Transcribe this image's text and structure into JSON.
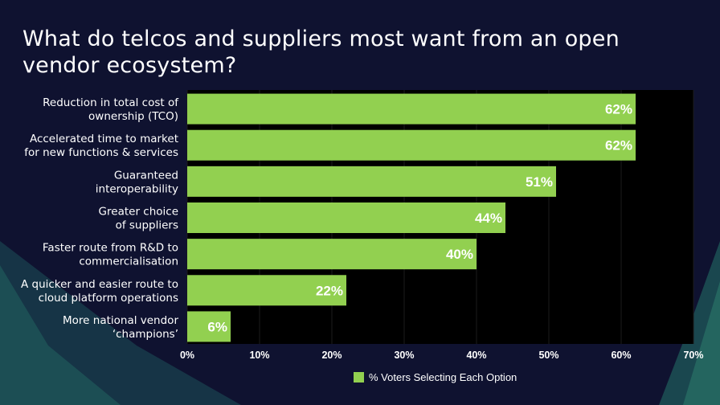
{
  "title": "What do telcos and suppliers most want from an open vendor ecosystem?",
  "colors": {
    "bar": "#92d050",
    "plot_bg": "#000000",
    "page_bg": "#0f1230",
    "text": "#ffffff"
  },
  "chart_data": {
    "type": "bar",
    "orientation": "horizontal",
    "title": "What do telcos and suppliers most want from an open vendor ecosystem?",
    "categories": [
      [
        "Reduction in total cost of",
        "ownership (TCO)"
      ],
      [
        "Accelerated time to market",
        "for new functions & services"
      ],
      [
        "Guaranteed",
        "interoperability"
      ],
      [
        "Greater choice",
        "of suppliers"
      ],
      [
        "Faster route from R&D to",
        "commercialisation"
      ],
      [
        "A quicker and easier route to",
        "cloud platform operations"
      ],
      [
        "More national vendor",
        "‘champions’"
      ]
    ],
    "series": [
      {
        "name": "% Voters Selecting Each Option",
        "values": [
          62,
          62,
          51,
          44,
          40,
          22,
          6
        ],
        "labels": [
          "62%",
          "62%",
          "51%",
          "44%",
          "40%",
          "22%",
          "6%"
        ]
      }
    ],
    "xlim": [
      0,
      70
    ],
    "xticks": [
      "0%",
      "10%",
      "20%",
      "30%",
      "40%",
      "50%",
      "60%",
      "70%"
    ],
    "grid": true,
    "legend": "bottom"
  }
}
